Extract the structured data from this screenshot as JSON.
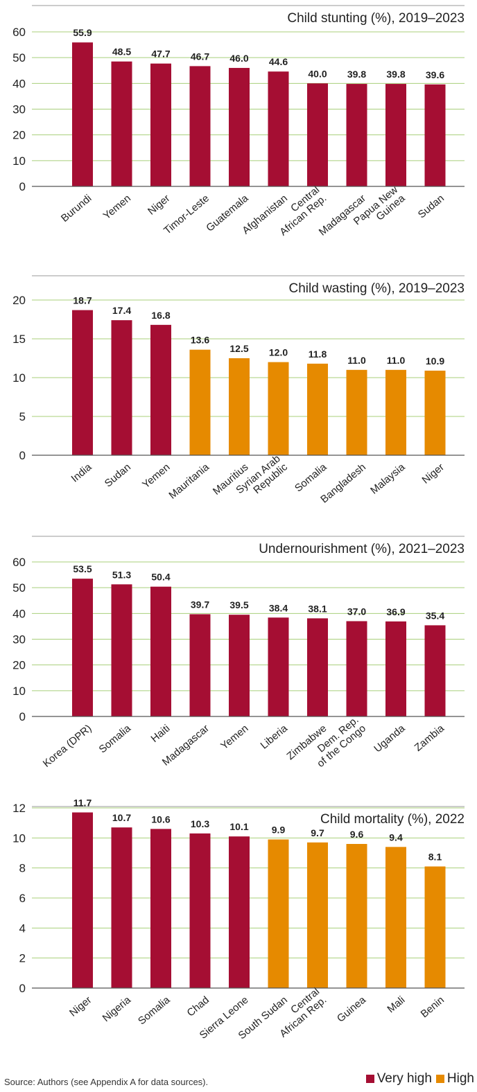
{
  "colors": {
    "very_high": "#a50e33",
    "high": "#e68a00",
    "grid": "#a8cf7a",
    "axis": "#555555"
  },
  "chart_data": [
    {
      "type": "bar",
      "title": "Child stunting (%), 2019–2023",
      "categories": [
        "Burundi",
        "Yemen",
        "Niger",
        "Timor-Leste",
        "Guatemala",
        "Afghanistan",
        "Central\nAfrican Rep.",
        "Madagascar",
        "Papua New\nGuinea",
        "Sudan"
      ],
      "values": [
        55.9,
        48.5,
        47.7,
        46.7,
        46.0,
        44.6,
        40.0,
        39.8,
        39.8,
        39.6
      ],
      "value_labels": [
        "55.9",
        "48.5",
        "47.7",
        "46.7",
        "46.0",
        "44.6",
        "40.0",
        "39.8",
        "39.8",
        "39.6"
      ],
      "levels": [
        "very_high",
        "very_high",
        "very_high",
        "very_high",
        "very_high",
        "very_high",
        "very_high",
        "very_high",
        "very_high",
        "very_high"
      ],
      "ylim": [
        0,
        60
      ],
      "yticks": [
        0,
        10,
        20,
        30,
        40,
        50,
        60
      ],
      "grid": true
    },
    {
      "type": "bar",
      "title": "Child wasting (%), 2019–2023",
      "categories": [
        "India",
        "Sudan",
        "Yemen",
        "Mauritania",
        "Mauritius",
        "Syrian Arab\nRepublic",
        "Somalia",
        "Bangladesh",
        "Malaysia",
        "Niger"
      ],
      "values": [
        18.7,
        17.4,
        16.8,
        13.6,
        12.5,
        12.0,
        11.8,
        11.0,
        11.0,
        10.9
      ],
      "value_labels": [
        "18.7",
        "17.4",
        "16.8",
        "13.6",
        "12.5",
        "12.0",
        "11.8",
        "11.0",
        "11.0",
        "10.9"
      ],
      "levels": [
        "very_high",
        "very_high",
        "very_high",
        "high",
        "high",
        "high",
        "high",
        "high",
        "high",
        "high"
      ],
      "ylim": [
        0,
        20
      ],
      "yticks": [
        0,
        5,
        10,
        15,
        20
      ],
      "grid": true
    },
    {
      "type": "bar",
      "title": "Undernourishment (%), 2021–2023",
      "categories": [
        "Korea (DPR)",
        "Somalia",
        "Haiti",
        "Madagascar",
        "Yemen",
        "Liberia",
        "Zimbabwe",
        "Dem. Rep.\nof the Congo",
        "Uganda",
        "Zambia"
      ],
      "values": [
        53.5,
        51.3,
        50.4,
        39.7,
        39.5,
        38.4,
        38.1,
        37.0,
        36.9,
        35.4
      ],
      "value_labels": [
        "53.5",
        "51.3",
        "50.4",
        "39.7",
        "39.5",
        "38.4",
        "38.1",
        "37.0",
        "36.9",
        "35.4"
      ],
      "levels": [
        "very_high",
        "very_high",
        "very_high",
        "very_high",
        "very_high",
        "very_high",
        "very_high",
        "very_high",
        "very_high",
        "very_high"
      ],
      "ylim": [
        0,
        60
      ],
      "yticks": [
        0,
        10,
        20,
        30,
        40,
        50,
        60
      ],
      "grid": true
    },
    {
      "type": "bar",
      "title": "Child mortality (%), 2022",
      "categories": [
        "Niger",
        "Nigeria",
        "Somalia",
        "Chad",
        "Sierra Leone",
        "South Sudan",
        "Central\nAfrican Rep.",
        "Guinea",
        "Mali",
        "Benin"
      ],
      "values": [
        11.7,
        10.7,
        10.6,
        10.3,
        10.1,
        9.9,
        9.7,
        9.6,
        9.4,
        8.1
      ],
      "value_labels": [
        "11.7",
        "10.7",
        "10.6",
        "10.3",
        "10.1",
        "9.9",
        "9.7",
        "9.6",
        "9.4",
        "8.1"
      ],
      "levels": [
        "very_high",
        "very_high",
        "very_high",
        "very_high",
        "very_high",
        "high",
        "high",
        "high",
        "high",
        "high"
      ],
      "ylim": [
        0,
        12
      ],
      "yticks": [
        0,
        2,
        4,
        6,
        8,
        10,
        12
      ],
      "grid": true
    }
  ],
  "footer": {
    "source": "Source: Authors (see Appendix A for data sources)."
  },
  "legend": {
    "very_high": "Very high",
    "high": "High"
  }
}
